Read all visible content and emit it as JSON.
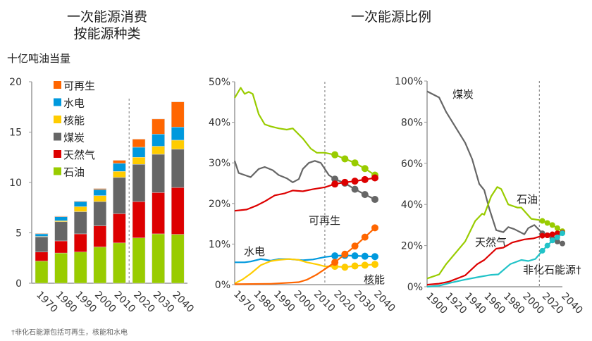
{
  "colors": {
    "oil": "#99cc00",
    "gas": "#dd0000",
    "coal": "#666666",
    "nuclear": "#ffcc00",
    "hydro": "#0099dd",
    "renewables": "#ff6600",
    "nonfossil": "#22c3c8"
  },
  "footnote": "†非化石能源包括可再生，核能和水电",
  "chart_data": [
    {
      "type": "bar",
      "stacked": true,
      "title": [
        "一次能源消费",
        "按能源种类"
      ],
      "ylabel": "十亿吨油当量",
      "ylim": [
        0,
        20
      ],
      "yticks": [
        "0",
        "5",
        "10",
        "15",
        "20"
      ],
      "categories": [
        "1970",
        "1980",
        "1990",
        "2000",
        "2010",
        "2020",
        "2030",
        "2040"
      ],
      "projection_after": "2010",
      "legend_position": "top-left",
      "series": [
        {
          "key": "oil",
          "name": "石油",
          "values": [
            2.2,
            3.0,
            3.1,
            3.6,
            4.0,
            4.5,
            4.9,
            4.85
          ]
        },
        {
          "key": "gas",
          "name": "天然气",
          "values": [
            0.9,
            1.2,
            1.8,
            2.1,
            2.9,
            3.6,
            4.1,
            4.65
          ]
        },
        {
          "key": "coal",
          "name": "煤炭",
          "values": [
            1.5,
            1.9,
            2.2,
            2.4,
            3.6,
            3.7,
            3.8,
            3.8
          ]
        },
        {
          "key": "nuclear",
          "name": "核能",
          "values": [
            0.05,
            0.1,
            0.5,
            0.6,
            0.6,
            0.7,
            0.8,
            0.9
          ]
        },
        {
          "key": "hydro",
          "name": "水电",
          "values": [
            0.25,
            0.4,
            0.5,
            0.6,
            0.8,
            1.0,
            1.2,
            1.3
          ]
        },
        {
          "key": "renewables",
          "name": "可再生",
          "values": [
            0.05,
            0.05,
            0.05,
            0.1,
            0.3,
            0.8,
            1.5,
            2.5
          ]
        }
      ]
    },
    {
      "type": "line",
      "title": "一次能源比例",
      "ylim": [
        0,
        50
      ],
      "xlim": [
        1965,
        2035
      ],
      "yticks": [
        "0%",
        "10%",
        "20%",
        "30%",
        "40%",
        "50%"
      ],
      "xticks": [
        "1970",
        "1980",
        "1990",
        "2000",
        "2010",
        "2020",
        "2030",
        "2040"
      ],
      "projection_after": 2010,
      "series": [
        {
          "key": "oil",
          "points": [
            [
              1965,
              46
            ],
            [
              1968,
              48.5
            ],
            [
              1970,
              47
            ],
            [
              1972,
              47.5
            ],
            [
              1974,
              47
            ],
            [
              1977,
              42
            ],
            [
              1980,
              39.5
            ],
            [
              1983,
              39
            ],
            [
              1987,
              38.5
            ],
            [
              1991,
              38.2
            ],
            [
              1994,
              38.5
            ],
            [
              1999,
              36
            ],
            [
              2003,
              33.5
            ],
            [
              2006,
              32.5
            ],
            [
              2010,
              32.5
            ],
            [
              2015,
              32
            ],
            [
              2020,
              31
            ],
            [
              2025,
              30
            ],
            [
              2030,
              28.6
            ],
            [
              2035,
              27
            ]
          ]
        },
        {
          "key": "coal",
          "points": [
            [
              1965,
              30.5
            ],
            [
              1967,
              27.5
            ],
            [
              1970,
              27
            ],
            [
              1973,
              26.5
            ],
            [
              1977,
              28.5
            ],
            [
              1980,
              29
            ],
            [
              1984,
              28.2
            ],
            [
              1987,
              27
            ],
            [
              1991,
              26.2
            ],
            [
              1994,
              25.2
            ],
            [
              1997,
              26
            ],
            [
              1999,
              28.5
            ],
            [
              2002,
              30
            ],
            [
              2005,
              30.5
            ],
            [
              2008,
              30
            ],
            [
              2012,
              27
            ],
            [
              2015,
              26
            ],
            [
              2020,
              25
            ],
            [
              2025,
              23.5
            ],
            [
              2030,
              22.2
            ],
            [
              2035,
              21
            ]
          ]
        },
        {
          "key": "gas",
          "points": [
            [
              1965,
              18.2
            ],
            [
              1971,
              18.5
            ],
            [
              1976,
              19.5
            ],
            [
              1980,
              20.5
            ],
            [
              1985,
              22
            ],
            [
              1990,
              22.5
            ],
            [
              1994,
              23.2
            ],
            [
              1999,
              23
            ],
            [
              2004,
              23.5
            ],
            [
              2010,
              24
            ],
            [
              2015,
              24.8
            ],
            [
              2020,
              25.2
            ],
            [
              2025,
              25.5
            ],
            [
              2030,
              25.9
            ],
            [
              2035,
              26.3
            ]
          ]
        },
        {
          "key": "hydro",
          "name": "水电",
          "points": [
            [
              1965,
              5.5
            ],
            [
              1970,
              5.5
            ],
            [
              1973,
              5.7
            ],
            [
              1978,
              6.3
            ],
            [
              1983,
              5.9
            ],
            [
              1987,
              6.3
            ],
            [
              1992,
              6.3
            ],
            [
              1999,
              6
            ],
            [
              2004,
              6.2
            ],
            [
              2010,
              6.8
            ],
            [
              2015,
              7.1
            ],
            [
              2020,
              7.2
            ],
            [
              2025,
              7.1
            ],
            [
              2030,
              7
            ],
            [
              2035,
              6.9
            ]
          ]
        },
        {
          "key": "nuclear",
          "name": "核能",
          "points": [
            [
              1965,
              0.3
            ],
            [
              1969,
              1.3
            ],
            [
              1973,
              2.7
            ],
            [
              1978,
              4.8
            ],
            [
              1983,
              5.8
            ],
            [
              1987,
              6.1
            ],
            [
              1992,
              6.3
            ],
            [
              1997,
              6.1
            ],
            [
              2001,
              5.5
            ],
            [
              2006,
              5
            ],
            [
              2010,
              4.5
            ],
            [
              2015,
              4.5
            ],
            [
              2020,
              4.3
            ],
            [
              2025,
              4.6
            ],
            [
              2030,
              4.8
            ],
            [
              2035,
              5
            ]
          ]
        },
        {
          "key": "renewables",
          "name": "可再生",
          "points": [
            [
              1965,
              0.1
            ],
            [
              1983,
              0.2
            ],
            [
              1997,
              0.6
            ],
            [
              2001,
              1.2
            ],
            [
              2006,
              2.5
            ],
            [
              2010,
              3.8
            ],
            [
              2015,
              5.5
            ],
            [
              2020,
              7.5
            ],
            [
              2025,
              9.5
            ],
            [
              2030,
              11.7
            ],
            [
              2035,
              14
            ]
          ]
        }
      ]
    },
    {
      "type": "line",
      "ylim": [
        0,
        100
      ],
      "xlim": [
        1900,
        2035
      ],
      "yticks": [
        "0%",
        "20%",
        "40%",
        "60%",
        "80%",
        "100%"
      ],
      "xticks": [
        "1900",
        "1920",
        "1940",
        "1960",
        "1980",
        "2000",
        "2020",
        "2040"
      ],
      "projection_after": 2012,
      "series": [
        {
          "key": "coal",
          "name": "煤炭",
          "points": [
            [
              1900,
              95
            ],
            [
              1912,
              92
            ],
            [
              1919,
              85
            ],
            [
              1938,
              70
            ],
            [
              1945,
              62
            ],
            [
              1952,
              50
            ],
            [
              1957,
              47
            ],
            [
              1962,
              38
            ],
            [
              1969,
              27.5
            ],
            [
              1976,
              26.5
            ],
            [
              1981,
              29
            ],
            [
              1987,
              28
            ],
            [
              1997,
              25.5
            ],
            [
              2001,
              28.5
            ],
            [
              2007,
              30
            ],
            [
              2011,
              28
            ],
            [
              2015,
              26
            ],
            [
              2020,
              25
            ],
            [
              2025,
              23.5
            ],
            [
              2030,
              22
            ],
            [
              2035,
              21
            ]
          ]
        },
        {
          "key": "oil",
          "name": "石油",
          "points": [
            [
              1900,
              4
            ],
            [
              1912,
              6
            ],
            [
              1919,
              11
            ],
            [
              1938,
              22
            ],
            [
              1948,
              32
            ],
            [
              1955,
              35.5
            ],
            [
              1957,
              35
            ],
            [
              1964,
              44
            ],
            [
              1970,
              48.5
            ],
            [
              1974,
              47.5
            ],
            [
              1981,
              40
            ],
            [
              1990,
              38.5
            ],
            [
              1994,
              38.5
            ],
            [
              2004,
              33
            ],
            [
              2011,
              32.5
            ],
            [
              2015,
              32
            ],
            [
              2020,
              31
            ],
            [
              2025,
              30
            ],
            [
              2030,
              28.5
            ],
            [
              2035,
              27
            ]
          ]
        },
        {
          "key": "gas",
          "name": "天然气",
          "points": [
            [
              1900,
              1
            ],
            [
              1912,
              1.5
            ],
            [
              1922,
              2.5
            ],
            [
              1938,
              5.5
            ],
            [
              1950,
              11
            ],
            [
              1957,
              13
            ],
            [
              1969,
              18.5
            ],
            [
              1976,
              19
            ],
            [
              1985,
              21.5
            ],
            [
              1997,
              23
            ],
            [
              2006,
              23.5
            ],
            [
              2015,
              24.8
            ],
            [
              2020,
              25
            ],
            [
              2025,
              25.5
            ],
            [
              2030,
              26
            ],
            [
              2035,
              26.3
            ]
          ]
        },
        {
          "key": "nonfossil",
          "name": "非化石能源†",
          "points": [
            [
              1900,
              0
            ],
            [
              1912,
              0.5
            ],
            [
              1924,
              2
            ],
            [
              1938,
              3.5
            ],
            [
              1952,
              4.8
            ],
            [
              1964,
              5.8
            ],
            [
              1971,
              6
            ],
            [
              1983,
              11
            ],
            [
              1994,
              13
            ],
            [
              2001,
              12.5
            ],
            [
              2008,
              13.5
            ],
            [
              2015,
              17.5
            ],
            [
              2020,
              20
            ],
            [
              2025,
              22.5
            ],
            [
              2030,
              24
            ],
            [
              2035,
              26
            ]
          ]
        }
      ]
    }
  ]
}
